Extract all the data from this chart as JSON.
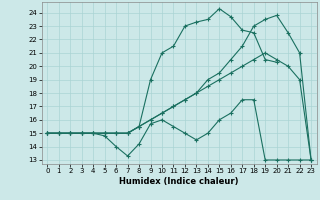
{
  "bg_color": "#cce8e8",
  "grid_color": "#aad4d4",
  "line_color": "#1a7060",
  "xlabel": "Humidex (Indice chaleur)",
  "xlim": [
    -0.5,
    23.5
  ],
  "ylim": [
    12.7,
    24.8
  ],
  "yticks": [
    13,
    14,
    15,
    16,
    17,
    18,
    19,
    20,
    21,
    22,
    23,
    24
  ],
  "xticks": [
    0,
    1,
    2,
    3,
    4,
    5,
    6,
    7,
    8,
    9,
    10,
    11,
    12,
    13,
    14,
    15,
    16,
    17,
    18,
    19,
    20,
    21,
    22,
    23
  ],
  "lines": [
    {
      "x": [
        0,
        1,
        2,
        3,
        4,
        5,
        6,
        7,
        8,
        9,
        10,
        11,
        12,
        13,
        14,
        15,
        16,
        17,
        18,
        19,
        20,
        21,
        22,
        23
      ],
      "y": [
        15,
        15,
        15,
        15,
        15,
        14.8,
        14,
        13.3,
        14.2,
        15.7,
        16.0,
        15.5,
        15.0,
        14.5,
        15.0,
        16.0,
        16.5,
        17.5,
        17.5,
        13,
        13,
        13,
        13,
        13
      ]
    },
    {
      "x": [
        0,
        1,
        2,
        3,
        4,
        5,
        6,
        7,
        8,
        9,
        10,
        11,
        12,
        13,
        14,
        15,
        16,
        17,
        18,
        19,
        20,
        21,
        22,
        23
      ],
      "y": [
        15,
        15,
        15,
        15,
        15,
        15,
        15,
        15,
        15.5,
        16,
        16.5,
        17,
        17.5,
        18,
        18.5,
        19,
        19.5,
        20,
        20.5,
        21,
        20.5,
        20,
        19,
        13
      ]
    },
    {
      "x": [
        0,
        1,
        2,
        3,
        4,
        5,
        6,
        7,
        8,
        9,
        10,
        11,
        12,
        13,
        14,
        15,
        16,
        17,
        18,
        19,
        20,
        21,
        22,
        23
      ],
      "y": [
        15,
        15,
        15,
        15,
        15,
        15,
        15,
        15,
        15.5,
        16,
        16.5,
        17,
        17.5,
        18,
        19,
        19.5,
        20.5,
        21.5,
        23,
        23.5,
        23.8,
        22.5,
        21,
        13
      ]
    },
    {
      "x": [
        0,
        1,
        2,
        3,
        4,
        5,
        6,
        7,
        8,
        9,
        10,
        11,
        12,
        13,
        14,
        15,
        16,
        17,
        18,
        19,
        20
      ],
      "y": [
        15,
        15,
        15,
        15,
        15,
        15,
        15,
        15,
        15.5,
        19,
        21,
        21.5,
        23,
        23.3,
        23.5,
        24.3,
        23.7,
        22.7,
        22.5,
        20.5,
        20.3
      ]
    }
  ]
}
